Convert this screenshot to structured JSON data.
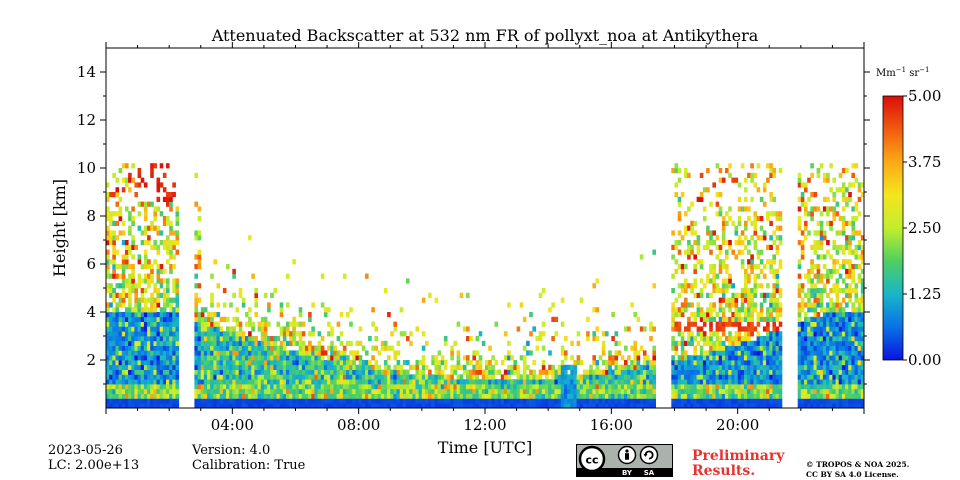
{
  "chart_data": {
    "type": "heatmap",
    "title": "Attenuated Backscatter at 532 nm FR of pollyxt_noa at Antikythera",
    "xlabel": "Time [UTC]",
    "ylabel": "Height [km]",
    "xlim_hours": [
      0,
      24
    ],
    "ylim_km": [
      0,
      15
    ],
    "x_ticks": [
      {
        "hour": 4,
        "label": "04:00"
      },
      {
        "hour": 8,
        "label": "08:00"
      },
      {
        "hour": 12,
        "label": "12:00"
      },
      {
        "hour": 16,
        "label": "16:00"
      },
      {
        "hour": 20,
        "label": "20:00"
      }
    ],
    "y_ticks": [
      {
        "km": 2,
        "label": "2"
      },
      {
        "km": 4,
        "label": "4"
      },
      {
        "km": 6,
        "label": "6"
      },
      {
        "km": 8,
        "label": "8"
      },
      {
        "km": 10,
        "label": "10"
      },
      {
        "km": 12,
        "label": "12"
      },
      {
        "km": 14,
        "label": "14"
      }
    ],
    "colorbar": {
      "unit_prefix": "Mm",
      "unit_exp1": "−1",
      "unit_mid": " sr",
      "unit_exp2": "−1",
      "min": 0.0,
      "max": 5.0,
      "colors": [
        "#0a14e0",
        "#0a72e6",
        "#19b5c8",
        "#4fcf62",
        "#c2ee2c",
        "#f4e51e",
        "#fbaa15",
        "#f25a10",
        "#db0d0a"
      ],
      "ticks": [
        {
          "value": 0.0,
          "label": "0.00"
        },
        {
          "value": 1.25,
          "label": "1.25"
        },
        {
          "value": 2.5,
          "label": "2.50"
        },
        {
          "value": 3.75,
          "label": "3.75"
        },
        {
          "value": 5.0,
          "label": "5.00"
        }
      ]
    },
    "data_segments_hours": [
      [
        0,
        2.3
      ],
      [
        2.8,
        17.4
      ],
      [
        17.9,
        21.4
      ],
      [
        21.9,
        24
      ]
    ],
    "max_signal_height_km": 10,
    "cloud_layer_km": 3.3
  },
  "footer": {
    "date": "2023-05-26",
    "lc": "LC: 2.00e+13",
    "version": "Version: 4.0",
    "calibration": "Calibration: True",
    "preliminary_line1": "Preliminary",
    "preliminary_line2": "Results.",
    "copyright_line1": "© TROPOS & NOA 2025.",
    "copyright_line2": "CC BY SA 4.0 License.",
    "license_badge": {
      "cc": "cc",
      "by": "BY",
      "sa": "SA"
    }
  }
}
